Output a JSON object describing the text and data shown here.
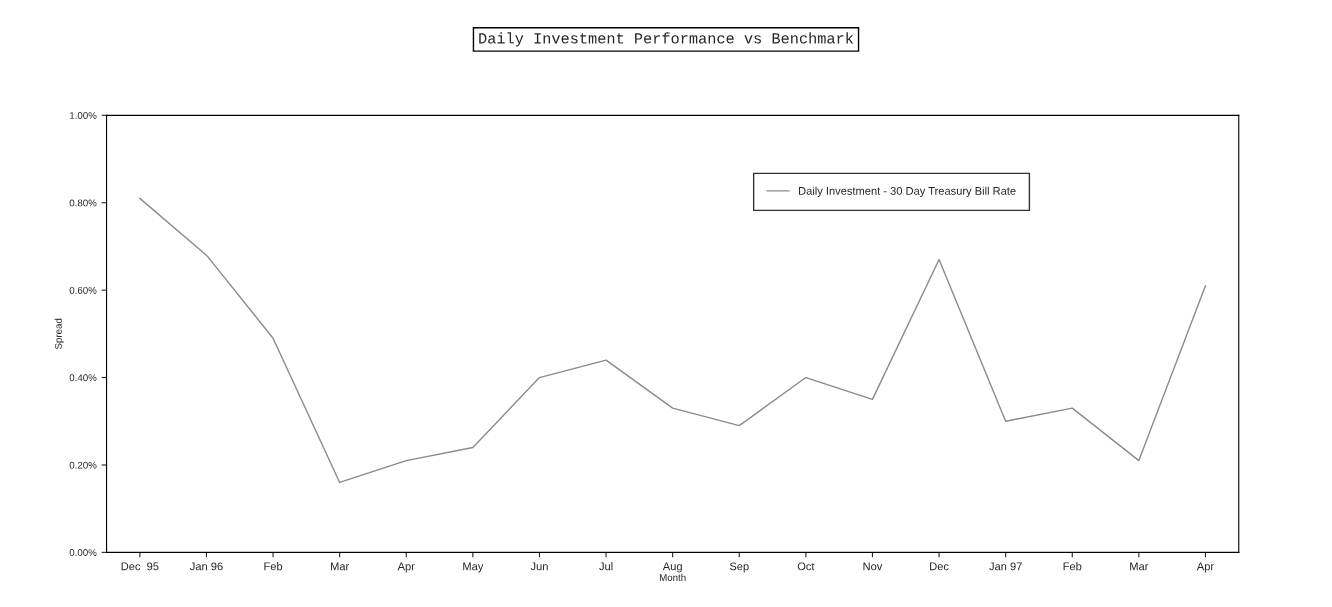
{
  "chart_data": {
    "type": "line",
    "title": "Daily Investment Performance vs Benchmark",
    "xlabel": "Month",
    "ylabel": "Spread",
    "categories": [
      "Dec  95",
      "Jan 96",
      "Feb",
      "Mar",
      "Apr",
      "May",
      "Jun",
      "Jul",
      "Aug",
      "Sep",
      "Oct",
      "Nov",
      "Dec",
      "Jan 97",
      "Feb",
      "Mar",
      "Apr"
    ],
    "series": [
      {
        "name": "Daily Investment - 30 Day Treasury Bill Rate",
        "color": "#8a8a8a",
        "values": [
          0.81,
          0.68,
          0.49,
          0.16,
          0.21,
          0.24,
          0.4,
          0.44,
          0.33,
          0.29,
          0.4,
          0.35,
          0.67,
          0.3,
          0.33,
          0.21,
          0.61
        ]
      }
    ],
    "ylim": [
      0,
      1
    ],
    "yticks": [
      {
        "value": 0,
        "label": "0.00%"
      },
      {
        "value": 0.2,
        "label": "0.20%"
      },
      {
        "value": 0.4,
        "label": "0.40%"
      },
      {
        "value": 0.6,
        "label": "0.60%"
      },
      {
        "value": 0.8,
        "label": "0.80%"
      },
      {
        "value": 1,
        "label": "1.00%"
      }
    ],
    "legend": "top right",
    "grid": false,
    "marker": "none",
    "line_style": "solid"
  }
}
